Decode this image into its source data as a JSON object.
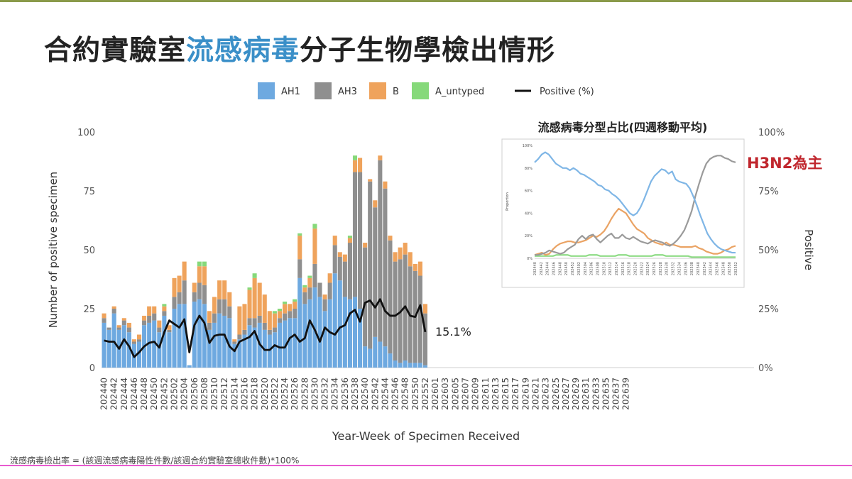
{
  "slide": {
    "title_part1": "合約實驗室",
    "title_highlight": "流感病毒",
    "title_part2": "分子生物學檢出情形",
    "footnote": "流感病毒檢出率 = (該週流感病毒陽性件數/該週合約實驗室總收件數)*100%",
    "annotation": "H3N2為主",
    "inset_title": "流感病毒分型占比(四週移動平均)"
  },
  "colors": {
    "AH1": "#6ea9e0",
    "AH3": "#8f8f8f",
    "B": "#efa35c",
    "A_untyped": "#86d97a",
    "Positive": "#111111",
    "inset_AH1": "#7fb6e6",
    "inset_AH3": "#9a9a9a",
    "inset_B": "#eaa364",
    "inset_A_untyped": "#8fdc86"
  },
  "chart_data": [
    {
      "type": "bar",
      "stacked": true,
      "xlabel": "Year-Week of Specimen Received",
      "ylabel": "Number of positive specimen",
      "y2label": "Positive",
      "ylim": [
        0,
        100
      ],
      "y2lim": [
        0,
        100
      ],
      "yticks": [
        "0",
        "25",
        "50",
        "75",
        "100"
      ],
      "y2ticks": [
        "0%",
        "25%",
        "50%",
        "75%",
        "100%"
      ],
      "legend_position": "top",
      "legend": [
        "AH1",
        "AH3",
        "B",
        "A_untyped",
        "Positive (%)"
      ],
      "grid": false,
      "end_label": "15.1%",
      "x_tick_labels": [
        "202440",
        "202442",
        "202444",
        "202446",
        "202448",
        "202450",
        "202452",
        "202502",
        "202504",
        "202506",
        "202508",
        "202510",
        "202512",
        "202514",
        "202516",
        "202518",
        "202520",
        "202522",
        "202524",
        "202526",
        "202528",
        "202530",
        "202532",
        "202534",
        "202536",
        "202538",
        "202540",
        "202542",
        "202544",
        "202546",
        "202548",
        "202550",
        "202552",
        "202601",
        "202603",
        "202605",
        "202607",
        "202609",
        "202611",
        "202613",
        "202615",
        "202617",
        "202619",
        "202621",
        "202623",
        "202625",
        "202627",
        "202629",
        "202631",
        "202633",
        "202635",
        "202637",
        "202639"
      ],
      "categories": [
        "202440",
        "202441",
        "202442",
        "202443",
        "202444",
        "202445",
        "202446",
        "202447",
        "202448",
        "202449",
        "202450",
        "202451",
        "202452",
        "202501",
        "202502",
        "202503",
        "202504",
        "202505",
        "202506",
        "202507",
        "202508",
        "202509",
        "202510",
        "202511",
        "202512",
        "202513",
        "202514",
        "202515",
        "202516",
        "202517",
        "202518",
        "202519",
        "202520",
        "202521",
        "202522",
        "202523",
        "202524",
        "202525",
        "202526",
        "202527",
        "202528",
        "202529",
        "202530",
        "202531",
        "202532",
        "202533",
        "202534",
        "202535",
        "202536",
        "202537",
        "202538",
        "202539",
        "202540",
        "202541",
        "202542",
        "202543",
        "202544",
        "202545",
        "202546",
        "202547",
        "202548",
        "202549",
        "202550",
        "202551",
        "202552"
      ],
      "series": [
        {
          "name": "AH1",
          "values": [
            19,
            16,
            23,
            16,
            18,
            15,
            10,
            11,
            18,
            19,
            20,
            15,
            22,
            15,
            25,
            27,
            27,
            1,
            28,
            29,
            27,
            16,
            19,
            23,
            22,
            21,
            10,
            12,
            14,
            18,
            17,
            19,
            16,
            14,
            15,
            19,
            20,
            21,
            21,
            38,
            27,
            29,
            34,
            30,
            24,
            29,
            40,
            37,
            30,
            29,
            30,
            25,
            9,
            8,
            13,
            11,
            9,
            6,
            3,
            2,
            3,
            2,
            2,
            2,
            1
          ]
        },
        {
          "name": "AH3",
          "values": [
            2,
            1,
            2,
            1,
            2,
            2,
            1,
            1,
            2,
            3,
            3,
            2,
            2,
            1,
            5,
            5,
            10,
            0,
            4,
            7,
            8,
            3,
            4,
            6,
            7,
            5,
            1,
            2,
            2,
            3,
            4,
            3,
            3,
            2,
            2,
            2,
            3,
            3,
            4,
            8,
            5,
            5,
            10,
            6,
            5,
            7,
            12,
            10,
            15,
            24,
            53,
            58,
            42,
            71,
            55,
            77,
            67,
            48,
            42,
            44,
            45,
            41,
            39,
            37,
            22
          ]
        },
        {
          "name": "B",
          "values": [
            2,
            0,
            1,
            1,
            1,
            2,
            1,
            2,
            2,
            4,
            3,
            3,
            2,
            2,
            8,
            7,
            8,
            0,
            4,
            7,
            8,
            5,
            7,
            8,
            8,
            6,
            1,
            12,
            11,
            12,
            17,
            14,
            12,
            8,
            6,
            3,
            4,
            3,
            3,
            10,
            2,
            4,
            15,
            0,
            2,
            4,
            4,
            2,
            3,
            2,
            5,
            6,
            2,
            1,
            3,
            2,
            3,
            2,
            4,
            5,
            5,
            6,
            3,
            6,
            4
          ]
        },
        {
          "name": "A_untyped",
          "values": [
            0,
            0,
            0,
            0,
            0,
            0,
            0,
            0,
            0,
            0,
            0,
            0,
            1,
            0,
            0,
            0,
            0,
            0,
            0,
            2,
            2,
            0,
            0,
            0,
            0,
            0,
            0,
            0,
            0,
            1,
            2,
            0,
            0,
            0,
            1,
            1,
            1,
            0,
            1,
            1,
            1,
            1,
            2,
            0,
            0,
            0,
            0,
            0,
            0,
            1,
            2,
            0,
            0,
            0,
            0,
            0,
            0,
            0,
            0,
            0,
            0,
            0,
            0,
            0,
            0
          ]
        },
        {
          "name": "Positive (%)",
          "axis": "right",
          "values": [
            11.5,
            11,
            11,
            8,
            12,
            9,
            4.5,
            6.5,
            9,
            10.5,
            11,
            8.5,
            15,
            20,
            18.5,
            17,
            20.5,
            6.5,
            18,
            22,
            19,
            10.5,
            13.5,
            14,
            14,
            9,
            7,
            11,
            12,
            13,
            15.5,
            10,
            7.5,
            7.5,
            9.5,
            8.5,
            8.5,
            12.5,
            14,
            11,
            12.5,
            20,
            16,
            11,
            17,
            15,
            14,
            17,
            18,
            23,
            24.5,
            19.5,
            27.5,
            28.5,
            25.5,
            29,
            24,
            22,
            22,
            23.5,
            26,
            22,
            21.5,
            26.5,
            15.1
          ]
        }
      ]
    },
    {
      "type": "line",
      "title": "流感病毒分型占比(四週移動平均)",
      "ylabel": "Proportion",
      "ylim": [
        0,
        100
      ],
      "yticks": [
        "0%",
        "20%",
        "40%",
        "60%",
        "80%",
        "100%"
      ],
      "x_tick_labels": [
        "202440",
        "202442",
        "202444",
        "202446",
        "202448",
        "202450",
        "202452",
        "202502",
        "202504",
        "202506",
        "202508",
        "202510",
        "202512",
        "202514",
        "202516",
        "202518",
        "202520",
        "202522",
        "202524",
        "202526",
        "202528",
        "202530",
        "202532",
        "202534",
        "202536",
        "202538",
        "202540",
        "202542",
        "202544",
        "202546",
        "202548",
        "202550",
        "202552"
      ],
      "series": [
        {
          "name": "AH1",
          "values": [
            85,
            88,
            92,
            94,
            92,
            88,
            84,
            82,
            80,
            80,
            78,
            80,
            78,
            75,
            74,
            72,
            70,
            68,
            65,
            64,
            61,
            60,
            57,
            55,
            52,
            48,
            44,
            40,
            38,
            40,
            45,
            52,
            60,
            68,
            73,
            76,
            79,
            78,
            75,
            77,
            70,
            68,
            67,
            66,
            62,
            55,
            47,
            38,
            30,
            22,
            17,
            13,
            10,
            8,
            7,
            6,
            5,
            5
          ]
        },
        {
          "name": "AH3",
          "values": [
            3,
            3,
            4,
            5,
            7,
            6,
            5,
            4,
            5,
            8,
            10,
            12,
            17,
            20,
            17,
            20,
            21,
            17,
            14,
            17,
            20,
            22,
            18,
            18,
            21,
            18,
            17,
            19,
            17,
            15,
            14,
            13,
            15,
            16,
            15,
            14,
            12,
            11,
            13,
            16,
            20,
            25,
            33,
            42,
            55,
            66,
            76,
            84,
            88,
            90,
            91,
            91,
            89,
            88,
            86,
            85
          ]
        },
        {
          "name": "B",
          "values": [
            3,
            4,
            5,
            3,
            4,
            8,
            11,
            13,
            14,
            15,
            15,
            14,
            14,
            15,
            16,
            18,
            20,
            19,
            21,
            24,
            29,
            35,
            40,
            44,
            42,
            40,
            35,
            30,
            26,
            24,
            22,
            18,
            16,
            14,
            13,
            12,
            14,
            12,
            12,
            11,
            10,
            10,
            10,
            10,
            11,
            9,
            8,
            6,
            5,
            4,
            4,
            5,
            7,
            8,
            10,
            11
          ]
        },
        {
          "name": "A_untyped",
          "values": [
            2,
            2,
            2,
            2,
            2,
            2,
            3,
            3,
            3,
            3,
            2,
            2,
            2,
            2,
            2,
            3,
            3,
            3,
            2,
            2,
            2,
            2,
            2,
            3,
            3,
            3,
            2,
            2,
            2,
            2,
            2,
            2,
            2,
            3,
            3,
            3,
            2,
            2,
            2,
            2,
            2,
            2,
            2,
            1,
            1,
            1,
            1,
            1,
            1,
            1,
            1,
            1,
            1,
            1,
            1,
            1
          ]
        }
      ]
    }
  ]
}
